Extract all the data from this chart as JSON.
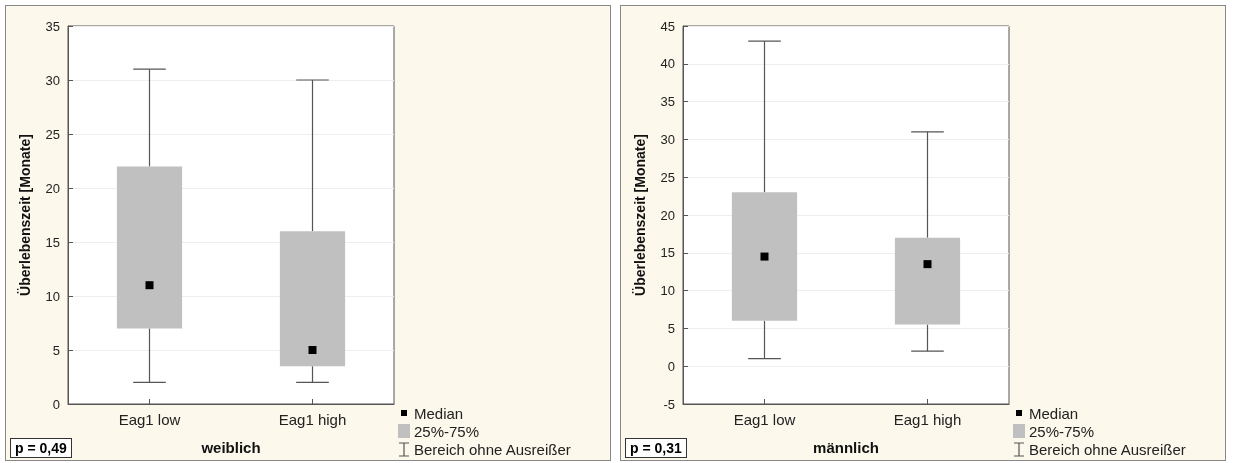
{
  "chart_data": [
    {
      "type": "box",
      "ylabel": "Überlebenszeit [Monate]",
      "xlabel": "weiblich",
      "categories": [
        "Eag1 low",
        "Eag1 high"
      ],
      "color": "#c0c0c0",
      "boxes": [
        {
          "low": 2,
          "q1": 7,
          "median": 11,
          "q3": 22,
          "high": 31
        },
        {
          "low": 2,
          "q1": 3.5,
          "median": 5,
          "q3": 16,
          "high": 30
        }
      ],
      "ylim": [
        0,
        35
      ],
      "yticks": [
        0,
        5,
        10,
        15,
        20,
        25,
        30,
        35
      ],
      "grid": "y",
      "annotations": [
        "p = 0,49",
        "Median",
        "25%-75%",
        "Bereich ohne Ausreißer"
      ]
    },
    {
      "type": "box",
      "ylabel": "Überlebenszeit [Monate]",
      "xlabel": "männlich",
      "categories": [
        "Eag1 low",
        "Eag1 high"
      ],
      "color": "#c0c0c0",
      "boxes": [
        {
          "low": 1,
          "q1": 6,
          "median": 14.5,
          "q3": 23,
          "high": 43
        },
        {
          "low": 2,
          "q1": 5.5,
          "median": 13.5,
          "q3": 17,
          "high": 31
        }
      ],
      "ylim": [
        -5,
        45
      ],
      "yticks": [
        -5,
        0,
        5,
        10,
        15,
        20,
        25,
        30,
        35,
        40,
        45
      ],
      "grid": "y",
      "annotations": [
        "p = 0,31",
        "Median",
        "25%-75%",
        "Bereich ohne Ausreißer"
      ]
    }
  ]
}
